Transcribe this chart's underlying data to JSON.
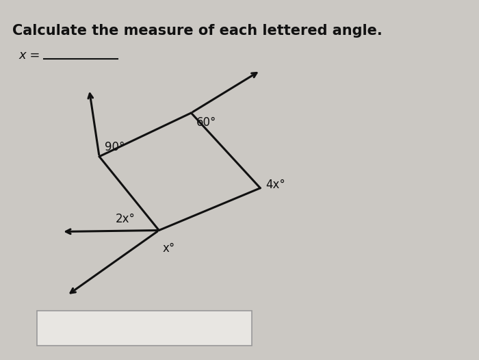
{
  "title": "Calculate the measure of each lettered angle.",
  "x_label_text": "x =",
  "bg_color": "#cbc8c3",
  "line_color": "#111111",
  "text_color": "#111111",
  "angles": {
    "top_left": "90°",
    "top_right": "60°",
    "bottom_right": "4x°",
    "bottom_left_upper": "2x°",
    "bottom_left_lower": "x°"
  },
  "figsize": [
    7.0,
    5.26
  ],
  "dpi": 100
}
